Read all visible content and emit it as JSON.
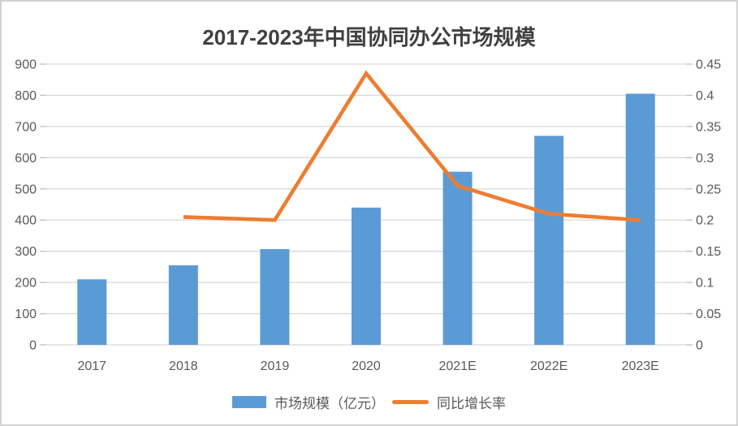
{
  "title": "2017-2023年中国协同办公市场规模",
  "legend": {
    "bar_label": "市场规模（亿元）",
    "line_label": "同比增长率"
  },
  "colors": {
    "bar": "#5B9BD5",
    "line": "#ED7D31",
    "gridline": "#D9D9D9",
    "tick": "#BFBFBF",
    "axis_text": "#595959",
    "title_text": "#404040",
    "frame_border": "#D2D2D2",
    "background": "#FFFFFF"
  },
  "chart_data": {
    "type": "bar",
    "subtype": "combo-bar-line-dual-axis",
    "title": "2017-2023年中国协同办公市场规模",
    "categories": [
      "2017",
      "2018",
      "2019",
      "2020",
      "2021E",
      "2022E",
      "2023E"
    ],
    "series": [
      {
        "name": "市场规模（亿元）",
        "type": "bar",
        "axis": "left",
        "color": "#5B9BD5",
        "values": [
          210,
          255,
          307,
          440,
          555,
          670,
          805
        ]
      },
      {
        "name": "同比增长率",
        "type": "line",
        "axis": "right",
        "color": "#ED7D31",
        "values": [
          null,
          0.205,
          0.2,
          0.435,
          0.255,
          0.21,
          0.2
        ]
      }
    ],
    "left_axis": {
      "min": 0,
      "max": 900,
      "step": 100,
      "tick_labels": [
        "0",
        "100",
        "200",
        "300",
        "400",
        "500",
        "600",
        "700",
        "800",
        "900"
      ]
    },
    "right_axis": {
      "min": 0,
      "max": 0.45,
      "step": 0.05,
      "tick_labels": [
        "0",
        "0.05",
        "0.1",
        "0.15",
        "0.2",
        "0.25",
        "0.3",
        "0.35",
        "0.4",
        "0.45"
      ]
    },
    "grid": true,
    "legend_position": "bottom",
    "xlabel": "",
    "ylabel": ""
  }
}
